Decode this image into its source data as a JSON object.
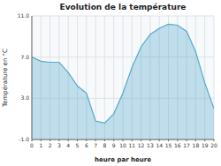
{
  "chart_data": {
    "type": "area",
    "title": "Evolution de la température",
    "xlabel": "heure par heure",
    "ylabel": "Température en °C",
    "x": [
      0,
      1,
      2,
      3,
      4,
      5,
      6,
      7,
      8,
      9,
      10,
      11,
      12,
      13,
      14,
      15,
      16,
      17,
      18,
      19,
      20
    ],
    "values": [
      7.0,
      6.6,
      6.5,
      6.5,
      5.5,
      4.2,
      3.5,
      0.8,
      0.6,
      1.5,
      3.5,
      6.0,
      8.0,
      9.2,
      9.8,
      10.2,
      10.1,
      9.5,
      7.5,
      4.5,
      2.0
    ],
    "color": "#55aacc",
    "xlim": [
      0,
      20
    ],
    "xticks": [
      0,
      1,
      2,
      3,
      4,
      5,
      6,
      7,
      8,
      9,
      10,
      11,
      12,
      13,
      14,
      15,
      16,
      17,
      18,
      19,
      20
    ],
    "ylim": [
      -1.0,
      11.0
    ],
    "yticks": [
      {
        "value": -1.0,
        "label": "-1.0"
      },
      {
        "value": 3.0,
        "label": "3.0"
      },
      {
        "value": 7.0,
        "label": "7.0"
      },
      {
        "value": 11.0,
        "label": "11.0"
      }
    ],
    "grid": true
  }
}
